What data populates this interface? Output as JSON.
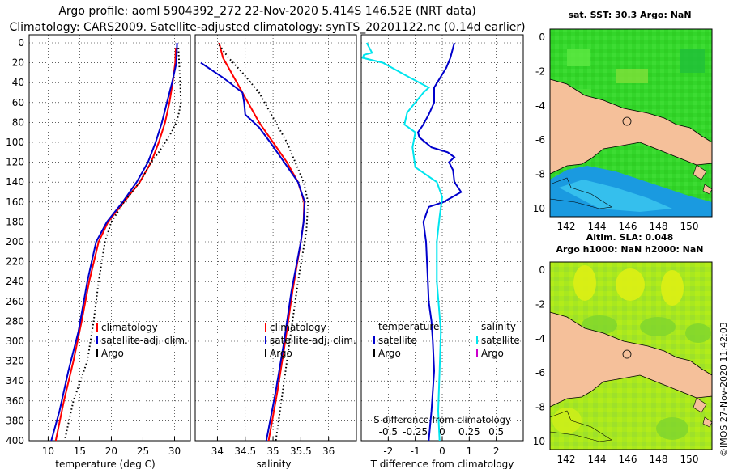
{
  "header": {
    "line1": "Argo profile: aoml 5904392_272 22-Nov-2020 5.414S 146.52E (NRT data)",
    "line2": "Climatology: CARS2009. Satellite-adjusted climatology: synTS_20201122.nc (0.14d earlier)"
  },
  "colors": {
    "climatology": "#ff0000",
    "satellite": "#0000cc",
    "argo": "#000000",
    "satellite_salinity": "#00e5ee",
    "argo_salinity": "#cc00cc",
    "land": "#f5c09a"
  },
  "legend": {
    "climatology": "climatology",
    "satellite_adj": "satellite-adj. clim.",
    "argo": "Argo",
    "temperature_header": "temperature",
    "salinity_header": "salinity",
    "satellite": "satellite"
  },
  "chart_data": [
    {
      "type": "line",
      "name": "temperature-profile",
      "xlabel": "temperature (deg C)",
      "ylabel": "",
      "xlim": [
        7,
        32.5
      ],
      "ylim": [
        400,
        0
      ],
      "xticks": [
        10,
        15,
        20,
        25,
        30
      ],
      "yticks": [
        0,
        20,
        40,
        60,
        80,
        100,
        120,
        140,
        160,
        180,
        200,
        220,
        240,
        260,
        280,
        300,
        320,
        340,
        360,
        380,
        400
      ],
      "series": [
        {
          "name": "climatology",
          "style": "solid",
          "color": "#ff0000",
          "points": [
            [
              30.2,
              5
            ],
            [
              30.1,
              20
            ],
            [
              29.7,
              40
            ],
            [
              29.2,
              60
            ],
            [
              28.5,
              80
            ],
            [
              27.5,
              100
            ],
            [
              26.3,
              120
            ],
            [
              24.5,
              140
            ],
            [
              22,
              160
            ],
            [
              19.5,
              180
            ],
            [
              18,
              200
            ],
            [
              16.5,
              240
            ],
            [
              15.3,
              280
            ],
            [
              14,
              320
            ],
            [
              12.5,
              360
            ],
            [
              11.2,
              400
            ]
          ]
        },
        {
          "name": "satellite-adj. clim.",
          "style": "solid",
          "color": "#0000cc",
          "points": [
            [
              30.4,
              0
            ],
            [
              30.3,
              20
            ],
            [
              29.6,
              40
            ],
            [
              28.8,
              60
            ],
            [
              28,
              80
            ],
            [
              27,
              100
            ],
            [
              25.8,
              120
            ],
            [
              24,
              140
            ],
            [
              21.8,
              160
            ],
            [
              19.3,
              180
            ],
            [
              17.6,
              200
            ],
            [
              16.2,
              240
            ],
            [
              14.8,
              290
            ],
            [
              13.2,
              330
            ],
            [
              11.8,
              370
            ],
            [
              10.5,
              400
            ]
          ]
        },
        {
          "name": "Argo",
          "style": "dotted",
          "color": "#000000",
          "points": [
            [
              30.6,
              5
            ],
            [
              30.9,
              40
            ],
            [
              31,
              60
            ],
            [
              30.7,
              70
            ],
            [
              30.3,
              80
            ],
            [
              29.5,
              90
            ],
            [
              28.5,
              100
            ],
            [
              27.5,
              110
            ],
            [
              26.3,
              120
            ],
            [
              24.5,
              140
            ],
            [
              22,
              160
            ],
            [
              20,
              180
            ],
            [
              19,
              200
            ],
            [
              18,
              240
            ],
            [
              17.2,
              280
            ],
            [
              16.2,
              320
            ],
            [
              14,
              360
            ],
            [
              12.6,
              400
            ]
          ]
        }
      ]
    },
    {
      "type": "line",
      "name": "salinity-profile",
      "xlabel": "salinity",
      "ylabel": "",
      "xlim": [
        33.6,
        36.5
      ],
      "ylim": [
        400,
        0
      ],
      "xticks": [
        34,
        34.5,
        35,
        35.5,
        36
      ],
      "xtick_labels": [
        "34",
        "34.5",
        "35",
        "35.5",
        "36"
      ],
      "series": [
        {
          "name": "climatology",
          "style": "solid",
          "color": "#ff0000",
          "points": [
            [
              34.03,
              0
            ],
            [
              34.1,
              15
            ],
            [
              34.35,
              40
            ],
            [
              34.55,
              60
            ],
            [
              34.75,
              80
            ],
            [
              35,
              100
            ],
            [
              35.25,
              120
            ],
            [
              35.45,
              140
            ],
            [
              35.56,
              160
            ],
            [
              35.55,
              180
            ],
            [
              35.5,
              200
            ],
            [
              35.35,
              250
            ],
            [
              35.22,
              300
            ],
            [
              35.08,
              350
            ],
            [
              34.92,
              400
            ]
          ]
        },
        {
          "name": "satellite-adj. clim.",
          "style": "solid",
          "color": "#0000cc",
          "points": [
            [
              33.7,
              20
            ],
            [
              34.1,
              35
            ],
            [
              34.45,
              50
            ],
            [
              34.48,
              60
            ],
            [
              34.5,
              72
            ],
            [
              34.75,
              85
            ],
            [
              34.95,
              100
            ],
            [
              35.2,
              120
            ],
            [
              35.45,
              140
            ],
            [
              35.57,
              160
            ],
            [
              35.55,
              180
            ],
            [
              35.5,
              200
            ],
            [
              35.33,
              250
            ],
            [
              35.2,
              300
            ],
            [
              35.05,
              350
            ],
            [
              34.88,
              400
            ]
          ]
        },
        {
          "name": "Argo",
          "style": "dotted",
          "color": "#000000",
          "points": [
            [
              34.03,
              2
            ],
            [
              34.2,
              15
            ],
            [
              34.45,
              30
            ],
            [
              34.75,
              50
            ],
            [
              34.95,
              70
            ],
            [
              35.1,
              85
            ],
            [
              35.25,
              100
            ],
            [
              35.4,
              120
            ],
            [
              35.55,
              140
            ],
            [
              35.63,
              160
            ],
            [
              35.6,
              190
            ],
            [
              35.45,
              240
            ],
            [
              35.35,
              280
            ],
            [
              35.25,
              320
            ],
            [
              35.15,
              360
            ],
            [
              35.05,
              400
            ]
          ]
        }
      ]
    },
    {
      "type": "line",
      "name": "difference-profile",
      "xlabel": "T difference from climatology",
      "ylabel": "",
      "xlim": [
        -3,
        3
      ],
      "ylim": [
        400,
        0
      ],
      "xticks": [
        -2,
        -1,
        0,
        1,
        2
      ],
      "top_axis_label": "S difference from climatology",
      "top_ticks": [
        -0.5,
        -0.25,
        0,
        0.25,
        0.5
      ],
      "top_tick_labels": [
        "-0.5",
        "-0.25",
        "0",
        "0.25",
        "0.5"
      ],
      "series": [
        {
          "name": "temperature satellite",
          "style": "solid",
          "color": "#0000cc",
          "points": [
            [
              0.45,
              0
            ],
            [
              0.4,
              5
            ],
            [
              0.3,
              15
            ],
            [
              0.15,
              25
            ],
            [
              -0.3,
              45
            ],
            [
              -0.3,
              60
            ],
            [
              -0.5,
              72
            ],
            [
              -0.7,
              82
            ],
            [
              -0.9,
              90
            ],
            [
              -0.85,
              95
            ],
            [
              -0.4,
              105
            ],
            [
              0.2,
              110
            ],
            [
              0.45,
              115
            ],
            [
              0.25,
              120
            ],
            [
              0.4,
              128
            ],
            [
              0.45,
              140
            ],
            [
              0.7,
              150
            ],
            [
              0.05,
              160
            ],
            [
              -0.5,
              165
            ],
            [
              -0.7,
              180
            ],
            [
              -0.6,
              200
            ],
            [
              -0.55,
              230
            ],
            [
              -0.5,
              260
            ],
            [
              -0.4,
              280
            ],
            [
              -0.35,
              300
            ],
            [
              -0.3,
              330
            ],
            [
              -0.4,
              370
            ],
            [
              -0.5,
              400
            ]
          ]
        },
        {
          "name": "salinity satellite",
          "style": "solid",
          "color": "#00e5ee",
          "points": [
            [
              -2.8,
              0
            ],
            [
              -2.7,
              5
            ],
            [
              -2.6,
              10
            ],
            [
              -2.9,
              12
            ],
            [
              -2.95,
              15
            ],
            [
              -2.2,
              20
            ],
            [
              -1.2,
              35
            ],
            [
              -0.5,
              45
            ],
            [
              -0.7,
              50
            ],
            [
              -1.3,
              70
            ],
            [
              -1.4,
              82
            ],
            [
              -1.0,
              90
            ],
            [
              -1.1,
              105
            ],
            [
              -1.0,
              125
            ],
            [
              -0.2,
              140
            ],
            [
              0,
              155
            ],
            [
              -0.1,
              175
            ],
            [
              -0.2,
              200
            ],
            [
              -0.2,
              240
            ],
            [
              -0.05,
              290
            ],
            [
              -0.1,
              330
            ],
            [
              -0.15,
              370
            ],
            [
              -0.1,
              400
            ]
          ]
        }
      ]
    }
  ],
  "maps": {
    "top": {
      "title": "sat. SST: 30.3 Argo: NaN",
      "xticks": [
        "142",
        "144",
        "146",
        "148",
        "150"
      ],
      "yticks": [
        "0",
        "-2",
        "-4",
        "-6",
        "-8",
        "-10"
      ]
    },
    "bottom": {
      "title_line1": "Altim. SLA: 0.048",
      "title_line2": "Argo h1000: NaN h2000: NaN",
      "xticks": [
        "142",
        "144",
        "146",
        "148",
        "150"
      ],
      "yticks": [
        "0",
        "-2",
        "-4",
        "-6",
        "-8",
        "-10"
      ]
    }
  },
  "footer": {
    "stamp": "©IMOS 27-Nov-2020 11:42:03"
  }
}
